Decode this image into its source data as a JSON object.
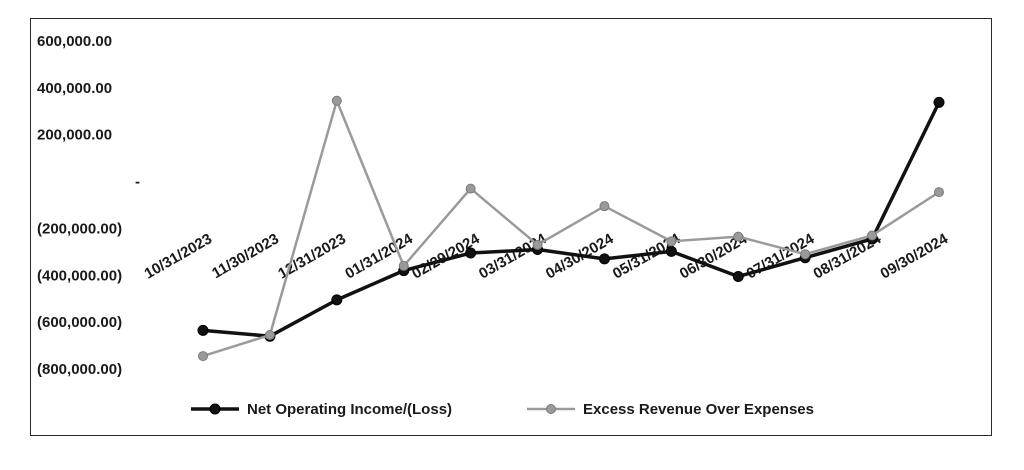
{
  "chart_data": {
    "type": "line",
    "title": "",
    "xlabel": "",
    "ylabel": "",
    "categories": [
      "10/31/2023",
      "11/30/2023",
      "12/31/2023",
      "01/31/2024",
      "02/29/2024",
      "03/31/2024",
      "04/30/2024",
      "05/31/2024",
      "06/30/2024",
      "07/31/2024",
      "08/31/2024",
      "09/30/2024"
    ],
    "ylim": [
      -800000,
      600000
    ],
    "yticks": [
      {
        "value": 600000,
        "label": "600,000.00"
      },
      {
        "value": 400000,
        "label": "400,000.00"
      },
      {
        "value": 200000,
        "label": "200,000.00"
      },
      {
        "value": 0,
        "label": "-"
      },
      {
        "value": -200000,
        "label": "(200,000.00)"
      },
      {
        "value": -400000,
        "label": "(400,000.00)"
      },
      {
        "value": -600000,
        "label": "(600,000.00)"
      },
      {
        "value": -800000,
        "label": "(800,000.00)"
      }
    ],
    "grid": false,
    "legend_position": "bottom",
    "series": [
      {
        "name": "Net Operating Income/(Loss)",
        "color": "#111111",
        "values": [
          -635000,
          -660000,
          -505000,
          -380000,
          -305000,
          -290000,
          -330000,
          -298000,
          -405000,
          -325000,
          -245000,
          338000
        ]
      },
      {
        "name": "Excess Revenue Over Expenses",
        "color": "#9a9a9a",
        "values": [
          -745000,
          -655000,
          345000,
          -360000,
          -30000,
          -270000,
          -105000,
          -255000,
          -235000,
          -310000,
          -230000,
          -45000
        ]
      }
    ]
  }
}
